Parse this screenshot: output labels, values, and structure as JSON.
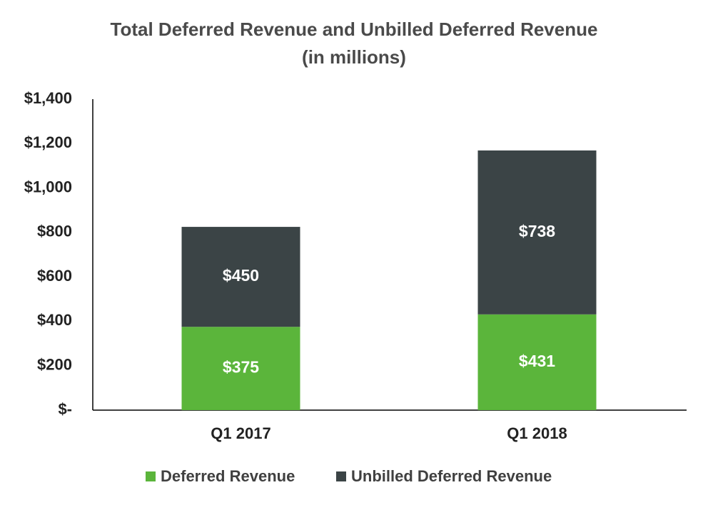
{
  "chart_data": {
    "type": "stacked-bar",
    "title": "Total Deferred Revenue and Unbilled Deferred Revenue",
    "subtitle": "(in millions)",
    "categories": [
      "Q1 2017",
      "Q1 2018"
    ],
    "series": [
      {
        "name": "Deferred Revenue",
        "color": "#5bb53b",
        "values": [
          375,
          431
        ],
        "value_labels": [
          "$375",
          "$431"
        ]
      },
      {
        "name": "Unbilled Deferred Revenue",
        "color": "#3b4446",
        "values": [
          450,
          738
        ],
        "value_labels": [
          "$450",
          "$738"
        ]
      }
    ],
    "ylim": [
      0,
      1400
    ],
    "yticks": [
      {
        "value": 0,
        "label": "$-"
      },
      {
        "value": 200,
        "label": "$200"
      },
      {
        "value": 400,
        "label": "$400"
      },
      {
        "value": 600,
        "label": "$600"
      },
      {
        "value": 800,
        "label": "$800"
      },
      {
        "value": 1000,
        "label": "$1,000"
      },
      {
        "value": 1200,
        "label": "$1,200"
      },
      {
        "value": 1400,
        "label": "$1,400"
      }
    ],
    "grid": false,
    "legend": "bottom"
  }
}
